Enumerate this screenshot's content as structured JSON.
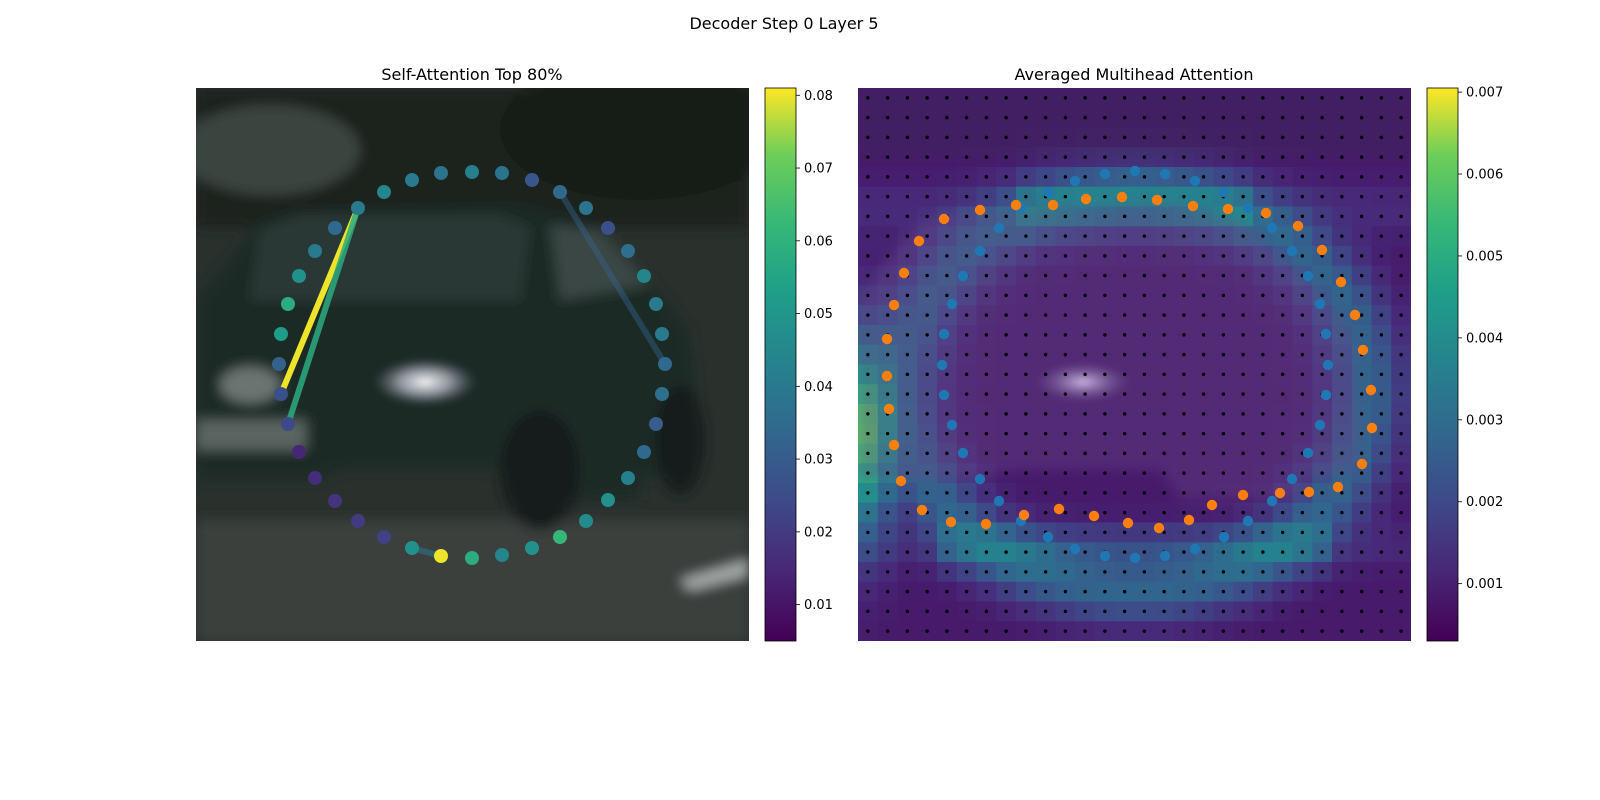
{
  "figure": {
    "suptitle": "Decoder Step 0 Layer 5"
  },
  "chart_data": [
    {
      "type": "scatter",
      "title": "Self-Attention Top 80%",
      "background": "blurred photo of a dark sedan car on a road",
      "colormap": "viridis",
      "colorbar": {
        "min": 0.005,
        "max": 0.081,
        "ticks": [
          "0.01",
          "0.02",
          "0.03",
          "0.04",
          "0.05",
          "0.06",
          "0.07",
          "0.08"
        ],
        "tick_values": [
          0.01,
          0.02,
          0.03,
          0.04,
          0.05,
          0.06,
          0.07,
          0.08
        ]
      },
      "points": [
        {
          "x": 472,
          "y": 172,
          "v": 0.042
        },
        {
          "x": 502,
          "y": 173,
          "v": 0.038
        },
        {
          "x": 532,
          "y": 180,
          "v": 0.028
        },
        {
          "x": 560,
          "y": 192,
          "v": 0.034
        },
        {
          "x": 586,
          "y": 208,
          "v": 0.038
        },
        {
          "x": 608,
          "y": 228,
          "v": 0.026
        },
        {
          "x": 628,
          "y": 251,
          "v": 0.036
        },
        {
          "x": 644,
          "y": 276,
          "v": 0.044
        },
        {
          "x": 656,
          "y": 304,
          "v": 0.04
        },
        {
          "x": 662,
          "y": 334,
          "v": 0.04
        },
        {
          "x": 665,
          "y": 364,
          "v": 0.034
        },
        {
          "x": 662,
          "y": 394,
          "v": 0.036
        },
        {
          "x": 656,
          "y": 424,
          "v": 0.03
        },
        {
          "x": 644,
          "y": 452,
          "v": 0.034
        },
        {
          "x": 628,
          "y": 478,
          "v": 0.042
        },
        {
          "x": 608,
          "y": 500,
          "v": 0.048
        },
        {
          "x": 586,
          "y": 521,
          "v": 0.046
        },
        {
          "x": 560,
          "y": 537,
          "v": 0.062
        },
        {
          "x": 532,
          "y": 548,
          "v": 0.048
        },
        {
          "x": 502,
          "y": 555,
          "v": 0.044
        },
        {
          "x": 472,
          "y": 558,
          "v": 0.058
        },
        {
          "x": 441,
          "y": 556,
          "v": 0.08
        },
        {
          "x": 412,
          "y": 548,
          "v": 0.048
        },
        {
          "x": 384,
          "y": 537,
          "v": 0.022
        },
        {
          "x": 358,
          "y": 521,
          "v": 0.02
        },
        {
          "x": 335,
          "y": 501,
          "v": 0.018
        },
        {
          "x": 315,
          "y": 478,
          "v": 0.016
        },
        {
          "x": 299,
          "y": 452,
          "v": 0.014
        },
        {
          "x": 288,
          "y": 424,
          "v": 0.024
        },
        {
          "x": 281,
          "y": 394,
          "v": 0.026
        },
        {
          "x": 279,
          "y": 364,
          "v": 0.032
        },
        {
          "x": 281,
          "y": 334,
          "v": 0.052
        },
        {
          "x": 288,
          "y": 304,
          "v": 0.058
        },
        {
          "x": 299,
          "y": 276,
          "v": 0.048
        },
        {
          "x": 315,
          "y": 251,
          "v": 0.04
        },
        {
          "x": 335,
          "y": 228,
          "v": 0.034
        },
        {
          "x": 358,
          "y": 208,
          "v": 0.04
        },
        {
          "x": 384,
          "y": 192,
          "v": 0.044
        },
        {
          "x": 412,
          "y": 180,
          "v": 0.04
        },
        {
          "x": 441,
          "y": 173,
          "v": 0.038
        }
      ],
      "edges": [
        {
          "from": 36,
          "to": 29,
          "v": 0.08,
          "opacity": 1.0
        },
        {
          "from": 36,
          "to": 28,
          "v": 0.058,
          "opacity": 0.85
        },
        {
          "from": 3,
          "to": 10,
          "v": 0.032,
          "opacity": 0.45
        },
        {
          "from": 21,
          "to": 22,
          "v": 0.04,
          "opacity": 0.55
        }
      ]
    },
    {
      "type": "heatmap",
      "title": "Averaged Multihead Attention",
      "colormap": "viridis",
      "colorbar": {
        "min": 0.0003,
        "max": 0.00705,
        "ticks": [
          "0.001",
          "0.002",
          "0.003",
          "0.004",
          "0.005",
          "0.006",
          "0.007"
        ],
        "tick_values": [
          0.001,
          0.002,
          0.003,
          0.004,
          0.005,
          0.006,
          0.007
        ]
      },
      "grid": {
        "rows": 28,
        "cols": 28
      },
      "series": [
        {
          "color": "#1f77b4",
          "points": [
            [
              1135,
              171
            ],
            [
              1165,
              174
            ],
            [
              1195,
              181
            ],
            [
              1224,
              192
            ],
            [
              1248,
              208
            ],
            [
              1272,
              228
            ],
            [
              1292,
              251
            ],
            [
              1308,
              276
            ],
            [
              1320,
              304
            ],
            [
              1326,
              334
            ],
            [
              1328,
              365
            ],
            [
              1326,
              395
            ],
            [
              1320,
              425
            ],
            [
              1308,
              453
            ],
            [
              1292,
              479
            ],
            [
              1272,
              501
            ],
            [
              1248,
              521
            ],
            [
              1224,
              537
            ],
            [
              1195,
              549
            ],
            [
              1165,
              556
            ],
            [
              1135,
              558
            ],
            [
              1105,
              556
            ],
            [
              1075,
              549
            ],
            [
              1048,
              537
            ],
            [
              1021,
              521
            ],
            [
              999,
              501
            ],
            [
              980,
              479
            ],
            [
              963,
              453
            ],
            [
              952,
              425
            ],
            [
              944,
              395
            ],
            [
              942,
              365
            ],
            [
              944,
              334
            ],
            [
              952,
              304
            ],
            [
              963,
              276
            ],
            [
              980,
              251
            ],
            [
              999,
              228
            ],
            [
              1021,
              208
            ],
            [
              1048,
              192
            ],
            [
              1075,
              181
            ],
            [
              1105,
              174
            ]
          ]
        },
        {
          "color": "#ff7f0e",
          "points": [
            [
              1086,
              199
            ],
            [
              1122,
              197
            ],
            [
              1157,
              200
            ],
            [
              1193,
              206
            ],
            [
              1228,
              209
            ],
            [
              1266,
              213
            ],
            [
              1298,
              226
            ],
            [
              1322,
              250
            ],
            [
              1341,
              282
            ],
            [
              1355,
              315
            ],
            [
              1363,
              350
            ],
            [
              1371,
              390
            ],
            [
              1372,
              428
            ],
            [
              1362,
              464
            ],
            [
              1338,
              487
            ],
            [
              1309,
              492
            ],
            [
              1280,
              493
            ],
            [
              1243,
              495
            ],
            [
              1212,
              505
            ],
            [
              1189,
              520
            ],
            [
              1159,
              528
            ],
            [
              1128,
              523
            ],
            [
              1094,
              516
            ],
            [
              1059,
              509
            ],
            [
              1024,
              515
            ],
            [
              986,
              524
            ],
            [
              951,
              522
            ],
            [
              922,
              510
            ],
            [
              901,
              481
            ],
            [
              894,
              445
            ],
            [
              889,
              409
            ],
            [
              887,
              376
            ],
            [
              887,
              339
            ],
            [
              894,
              305
            ],
            [
              904,
              273
            ],
            [
              919,
              241
            ],
            [
              944,
              219
            ],
            [
              980,
              210
            ],
            [
              1016,
              205
            ],
            [
              1053,
              205
            ]
          ]
        }
      ]
    }
  ]
}
